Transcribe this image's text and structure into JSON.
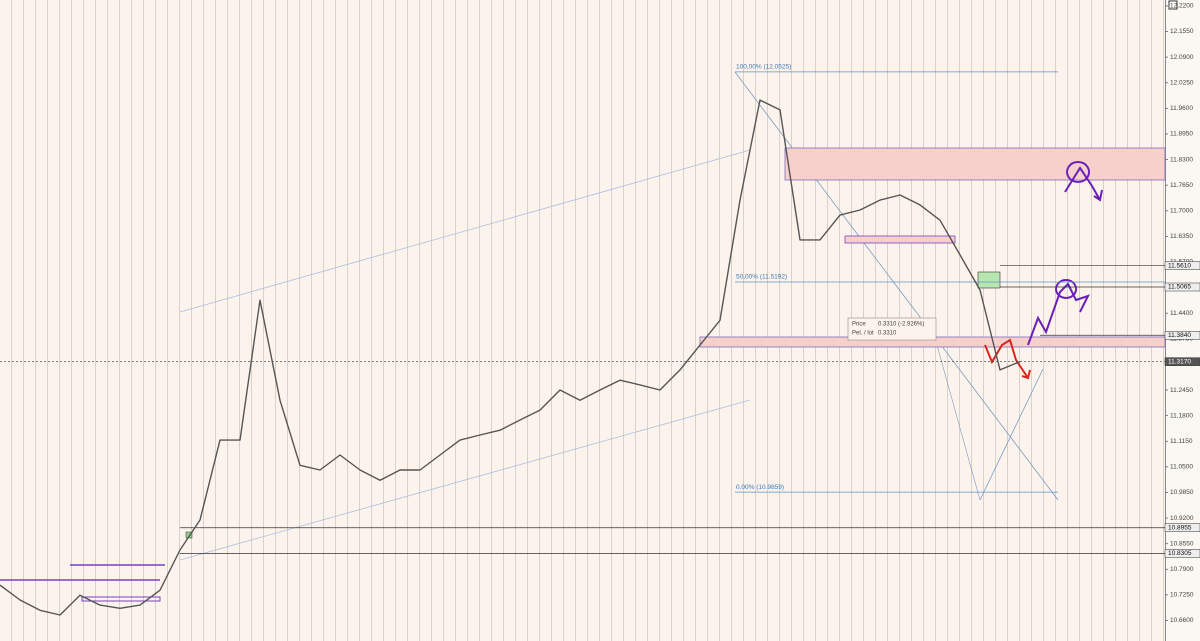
{
  "chart_data": {
    "type": "line",
    "color": "#555555",
    "values": [
      10.75,
      10.712,
      10.686,
      10.674,
      10.724,
      10.699,
      10.691,
      10.699,
      10.737,
      10.839,
      10.915,
      11.118,
      11.118,
      11.473,
      11.219,
      11.054,
      11.042,
      11.08,
      11.042,
      11.016,
      11.042,
      11.042,
      11.08,
      11.118,
      11.131,
      11.143,
      11.169,
      11.194,
      11.245,
      11.219,
      11.245,
      11.27,
      11.258,
      11.245,
      11.296,
      11.359,
      11.422,
      11.727,
      11.981,
      11.956,
      11.626,
      11.626,
      11.689,
      11.702,
      11.727,
      11.74,
      11.715,
      11.676,
      11.588,
      11.499,
      11.296,
      11.317
    ],
    "ylim": [
      10.608,
      12.235
    ],
    "yticks": [
      {
        "value": 10.66,
        "label": "10.6600"
      },
      {
        "value": 10.725,
        "label": "10.7250"
      },
      {
        "value": 10.79,
        "label": "10.7900"
      },
      {
        "value": 10.855,
        "label": "10.8550"
      },
      {
        "value": 10.92,
        "label": "10.9200"
      },
      {
        "value": 10.985,
        "label": "10.9850"
      },
      {
        "value": 11.05,
        "label": "11.0500"
      },
      {
        "value": 11.115,
        "label": "11.1150"
      },
      {
        "value": 11.18,
        "label": "11.1800"
      },
      {
        "value": 11.245,
        "label": "11.2450"
      },
      {
        "value": 11.31,
        "label": "11.3100"
      },
      {
        "value": 11.375,
        "label": "11.3750"
      },
      {
        "value": 11.44,
        "label": "11.4400"
      },
      {
        "value": 11.505,
        "label": "11.5050"
      },
      {
        "value": 11.57,
        "label": "11.5700"
      },
      {
        "value": 11.635,
        "label": "11.6350"
      },
      {
        "value": 11.7,
        "label": "11.7000"
      },
      {
        "value": 11.765,
        "label": "11.7650"
      },
      {
        "value": 11.83,
        "label": "11.8300"
      },
      {
        "value": 11.895,
        "label": "11.8950"
      },
      {
        "value": 11.96,
        "label": "11.9600"
      },
      {
        "value": 12.025,
        "label": "12.0250"
      },
      {
        "value": 12.09,
        "label": "12.0900"
      },
      {
        "value": 12.155,
        "label": "12.1550"
      },
      {
        "value": 12.22,
        "label": "12.2200"
      }
    ],
    "fib_levels": [
      {
        "value": 12.0525,
        "label": "100,00% (12.0525)"
      },
      {
        "value": 11.5192,
        "label": "50,00% (11.5192)"
      },
      {
        "value": 10.9859,
        "label": "0,00% (10.9859)"
      }
    ],
    "price_labels": [
      {
        "value": 11.561,
        "label": "11.5610"
      },
      {
        "value": 11.5065,
        "label": "11.5065"
      },
      {
        "value": 11.384,
        "label": "11.3840"
      },
      {
        "value": 11.317,
        "label": "11.3170"
      },
      {
        "value": 10.8955,
        "label": "10.8955"
      },
      {
        "value": 10.8305,
        "label": "10.8305"
      }
    ],
    "info_box": {
      "price_label": "Price",
      "price_value": "0.3310 (-2.926%)",
      "lot_label": "Pel. / lot",
      "lot_value": "0.3310"
    }
  }
}
